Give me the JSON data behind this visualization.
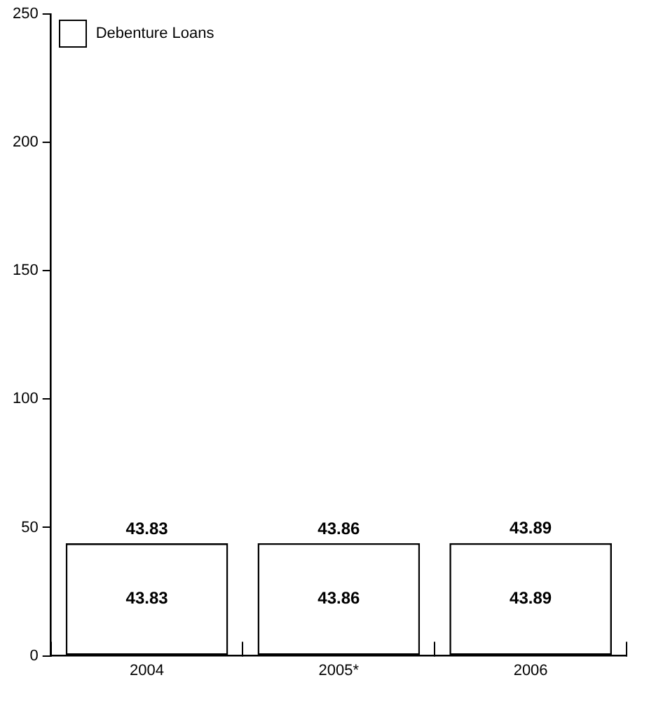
{
  "chart_data": {
    "type": "bar",
    "categories": [
      "2004",
      "2005*",
      "2006"
    ],
    "series": [
      {
        "name": "Debenture Loans",
        "color": "#ffffff",
        "values": [
          43.83,
          43.86,
          43.89
        ]
      }
    ],
    "ylim": [
      0,
      250
    ],
    "yticks": [
      0,
      50,
      100,
      150,
      200,
      250
    ],
    "data_labels": true,
    "totals": [
      "43.83",
      "43.86",
      "43.89"
    ],
    "legend": "top left",
    "grid": false
  }
}
